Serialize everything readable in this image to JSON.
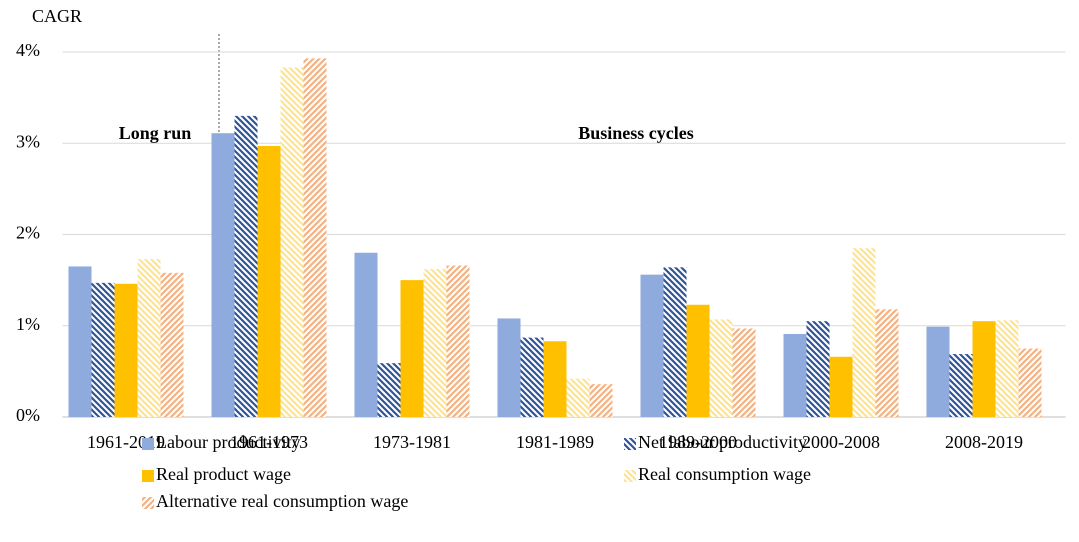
{
  "chart_data": {
    "type": "bar",
    "y_label": "CAGR",
    "categories": [
      "1961-2019",
      "1961-1973",
      "1973-1981",
      "1981-1989",
      "1989-2000",
      "2000-2008",
      "2008-2019"
    ],
    "series": [
      {
        "name": "Labour productivity",
        "color": "#8FAADC",
        "hatch": "none",
        "values": [
          1.65,
          3.11,
          1.8,
          1.08,
          1.56,
          0.91,
          0.99
        ]
      },
      {
        "name": "Net labour productivity",
        "color": "#2F5597",
        "hatch": "back-diagonal",
        "values": [
          1.47,
          3.3,
          0.59,
          0.87,
          1.64,
          1.05,
          0.69
        ]
      },
      {
        "name": "Real product wage",
        "color": "#FFC000",
        "hatch": "none",
        "values": [
          1.46,
          2.97,
          1.5,
          0.83,
          1.23,
          0.66,
          1.05
        ]
      },
      {
        "name": "Real consumption wage",
        "color": "#FFE48A",
        "hatch": "back-diagonal",
        "values": [
          1.73,
          3.83,
          1.62,
          0.42,
          1.07,
          1.85,
          1.06
        ]
      },
      {
        "name": "Alternative real consumption wage",
        "color": "#F4B183",
        "hatch": "diagonal",
        "values": [
          1.58,
          3.93,
          1.66,
          0.36,
          0.97,
          1.18,
          0.75
        ]
      }
    ],
    "ylim": [
      0,
      4
    ],
    "yticks": [
      {
        "value": 0,
        "label": "0%"
      },
      {
        "value": 1,
        "label": "1%"
      },
      {
        "value": 2,
        "label": "2%"
      },
      {
        "value": 3,
        "label": "3%"
      },
      {
        "value": 4,
        "label": "4%"
      }
    ],
    "grid": true,
    "annotations": [
      "Long run",
      "Business cycles"
    ]
  }
}
